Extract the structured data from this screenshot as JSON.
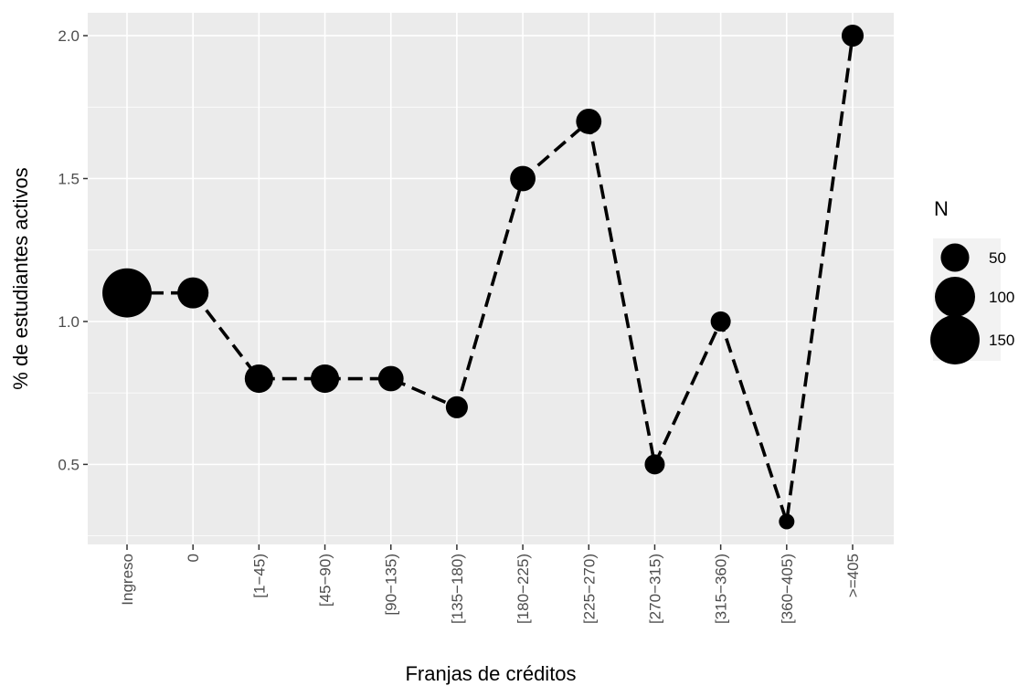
{
  "chart_data": {
    "type": "line",
    "title": "",
    "xlabel": "Franjas de créditos",
    "ylabel": "% de estudiantes activos",
    "categories": [
      "Ingreso",
      "0",
      "[1−45)",
      "[45−90)",
      "[90−135)",
      "[135−180)",
      "[180−225)",
      "[225−270)",
      "[270−315)",
      "[315−360)",
      "[360−405)",
      ">=405"
    ],
    "series": [
      {
        "values": [
          1.1,
          1.1,
          0.8,
          0.8,
          0.8,
          0.7,
          1.5,
          1.7,
          0.5,
          1.0,
          0.3,
          2.0
        ],
        "n": [
          150,
          60,
          50,
          50,
          40,
          30,
          40,
          40,
          25,
          25,
          15,
          30
        ],
        "line_style": "dashed",
        "color": "#000000"
      }
    ],
    "yticks": [
      0.5,
      1.0,
      1.5,
      2.0
    ],
    "ytick_labels": [
      "0.5",
      "1.0",
      "1.5",
      "2.0"
    ],
    "ylim": [
      0.22,
      2.08
    ],
    "grid": true,
    "panel_background": "#ebebeb",
    "legend": {
      "title": "N",
      "position": "right",
      "items": [
        {
          "label": "50",
          "value": 50
        },
        {
          "label": "100",
          "value": 100
        },
        {
          "label": "150",
          "value": 150
        }
      ]
    }
  }
}
